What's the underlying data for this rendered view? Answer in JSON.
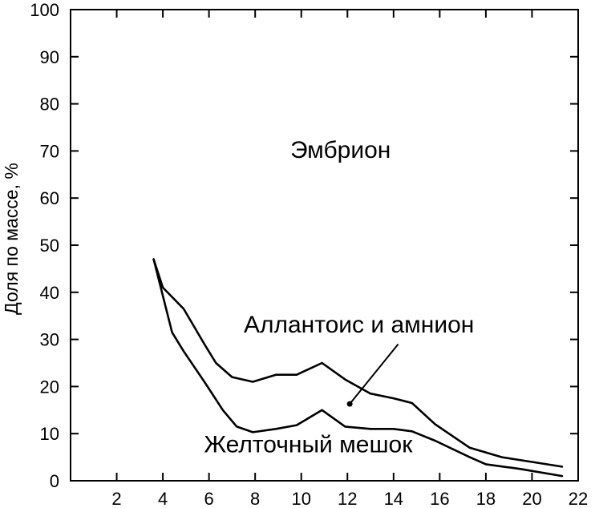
{
  "chart_data": {
    "type": "line",
    "title": "",
    "xlabel": "",
    "ylabel": "Доля по массе, %",
    "xlim": [
      0,
      22
    ],
    "ylim": [
      0,
      100
    ],
    "x_ticks": [
      2,
      4,
      6,
      8,
      10,
      12,
      14,
      16,
      18,
      20,
      22
    ],
    "y_ticks": [
      0,
      10,
      20,
      30,
      40,
      50,
      60,
      70,
      80,
      90,
      100
    ],
    "grid": false,
    "regions": [
      {
        "label": "Эмбрион",
        "x": 11.7,
        "y": 68.5
      },
      {
        "label": "Аллантоис и амнион",
        "x": 12.5,
        "y": 31.5
      },
      {
        "label": "Желточный мешок",
        "x": 10.3,
        "y": 6
      }
    ],
    "annotation": {
      "from_x": 14.2,
      "from_y": 29,
      "to_x": 12.1,
      "to_y": 16.3
    },
    "series": [
      {
        "x": [
          3.6,
          4.0,
          4.9,
          5.8,
          6.3,
          7.0,
          7.9,
          8.9,
          9.8,
          10.9,
          11.9,
          13.0,
          14.0,
          14.8,
          15.8,
          17.3,
          18.7,
          20.0,
          21.3
        ],
        "values": [
          47,
          41,
          36.5,
          29,
          25,
          22,
          21,
          22.5,
          22.5,
          25,
          21.5,
          18.5,
          17.5,
          16.5,
          12,
          7,
          5,
          4,
          3
        ]
      },
      {
        "x": [
          3.6,
          4.4,
          4.9,
          5.8,
          6.6,
          7.2,
          7.9,
          8.9,
          9.8,
          10.9,
          11.9,
          13.0,
          14.0,
          14.8,
          15.8,
          17.3,
          18.0,
          19.5,
          21.3
        ],
        "values": [
          47,
          31.5,
          27.5,
          21,
          15,
          11.5,
          10.3,
          11,
          11.8,
          15,
          11.5,
          11,
          11,
          10.5,
          8.5,
          5,
          3.5,
          2.5,
          1
        ]
      }
    ]
  }
}
